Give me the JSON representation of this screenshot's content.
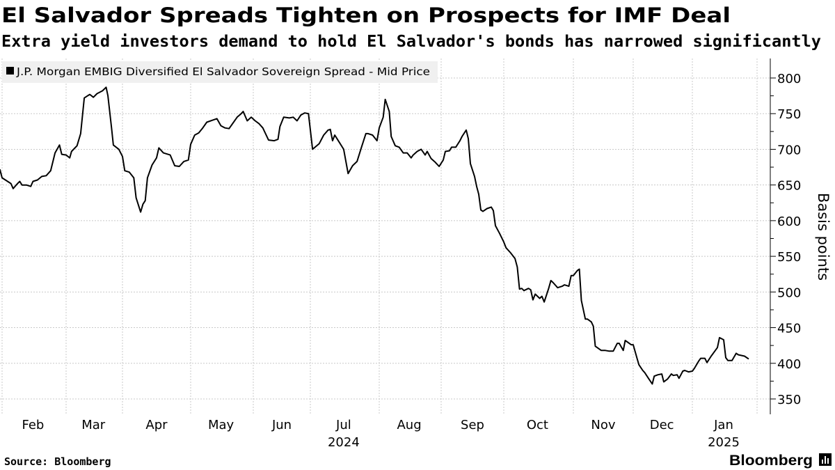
{
  "header": {
    "title": "El Salvador Spreads Tighten on Prospects for IMF Deal",
    "subtitle": "Extra yield investors demand to hold El Salvador's bonds has narrowed significantly"
  },
  "footer": {
    "source": "Source: Bloomberg",
    "logo": "Bloomberg"
  },
  "chart_data": {
    "type": "line",
    "title": "El Salvador Spreads Tighten on Prospects for IMF Deal",
    "ylabel": "Basis points",
    "xlabel": "",
    "ylim": [
      335,
      825
    ],
    "yticks": [
      "800",
      "750",
      "700",
      "650",
      "600",
      "550",
      "500",
      "450",
      "400",
      "350"
    ],
    "xticks": [
      {
        "label": "Feb",
        "date": "2024-02-15"
      },
      {
        "label": "Mar",
        "date": "2024-03-16"
      },
      {
        "label": "Apr",
        "date": "2024-04-16"
      },
      {
        "label": "May",
        "date": "2024-05-16"
      },
      {
        "label": "Jun",
        "date": "2024-06-16"
      },
      {
        "label": "Jul",
        "date": "2024-07-16"
      },
      {
        "label": "Aug",
        "date": "2024-08-16"
      },
      {
        "label": "Sep",
        "date": "2024-09-16"
      },
      {
        "label": "Oct",
        "date": "2024-10-16"
      },
      {
        "label": "Nov",
        "date": "2024-11-16"
      },
      {
        "label": "Dec",
        "date": "2024-12-16"
      },
      {
        "label": "Jan",
        "date": "2025-01-16"
      }
    ],
    "year_labels": [
      {
        "label": "2024",
        "date": "2024-07-16"
      },
      {
        "label": "2025",
        "date": "2025-01-16"
      }
    ],
    "grid": true,
    "legend_position": "top-left",
    "line_color": "#000000",
    "legend_bg": "#f0f0f0",
    "series": [
      {
        "name": "J.P. Morgan EMBIG Diversified El Salvador Sovereign Spread - Mid Price",
        "x": [
          "2024-01-31",
          "2024-02-01",
          "2024-02-05",
          "2024-02-06",
          "2024-02-08",
          "2024-02-09",
          "2024-02-10",
          "2024-02-12",
          "2024-02-14",
          "2024-02-15",
          "2024-02-17",
          "2024-02-19",
          "2024-02-21",
          "2024-02-23",
          "2024-02-25",
          "2024-02-27",
          "2024-02-28",
          "2024-03-01",
          "2024-03-03",
          "2024-03-04",
          "2024-03-07",
          "2024-03-09",
          "2024-03-11",
          "2024-03-14",
          "2024-03-16",
          "2024-03-18",
          "2024-03-21",
          "2024-03-23",
          "2024-03-24",
          "2024-03-26",
          "2024-03-27",
          "2024-03-30",
          "2024-04-01",
          "2024-04-02",
          "2024-04-04",
          "2024-04-06",
          "2024-04-07",
          "2024-04-09",
          "2024-04-10",
          "2024-04-11",
          "2024-04-12",
          "2024-04-14",
          "2024-04-16",
          "2024-04-17",
          "2024-04-19",
          "2024-04-22",
          "2024-04-24",
          "2024-04-26",
          "2024-04-28",
          "2024-04-30",
          "2024-05-01",
          "2024-05-03",
          "2024-05-05",
          "2024-05-07",
          "2024-05-09",
          "2024-05-12",
          "2024-05-14",
          "2024-05-16",
          "2024-05-18",
          "2024-05-20",
          "2024-05-22",
          "2024-05-24",
          "2024-05-26",
          "2024-05-27",
          "2024-05-29",
          "2024-05-31",
          "2024-06-02",
          "2024-06-04",
          "2024-06-06",
          "2024-06-09",
          "2024-06-12",
          "2024-06-14",
          "2024-06-15",
          "2024-06-17",
          "2024-06-20",
          "2024-06-22",
          "2024-06-24",
          "2024-06-26",
          "2024-06-28",
          "2024-06-30",
          "2024-07-02",
          "2024-07-05",
          "2024-07-07",
          "2024-07-09",
          "2024-07-10",
          "2024-07-11",
          "2024-07-12",
          "2024-07-14",
          "2024-07-16",
          "2024-07-18",
          "2024-07-20",
          "2024-07-22",
          "2024-07-24",
          "2024-07-26",
          "2024-07-27",
          "2024-07-29",
          "2024-07-31",
          "2024-08-01",
          "2024-08-03",
          "2024-08-04",
          "2024-08-06",
          "2024-08-07",
          "2024-08-09",
          "2024-08-11",
          "2024-08-13",
          "2024-08-15",
          "2024-08-17",
          "2024-08-18",
          "2024-08-20",
          "2024-08-22",
          "2024-08-24",
          "2024-08-25",
          "2024-08-27",
          "2024-08-29",
          "2024-08-31",
          "2024-09-02",
          "2024-09-03",
          "2024-09-05",
          "2024-09-06",
          "2024-09-08",
          "2024-09-10",
          "2024-09-11",
          "2024-09-13",
          "2024-09-14",
          "2024-09-15",
          "2024-09-17",
          "2024-09-18",
          "2024-09-19",
          "2024-09-20",
          "2024-09-21",
          "2024-09-23",
          "2024-09-25",
          "2024-09-26",
          "2024-09-27",
          "2024-09-29",
          "2024-10-01",
          "2024-10-02",
          "2024-10-04",
          "2024-10-06",
          "2024-10-07",
          "2024-10-08",
          "2024-10-09",
          "2024-10-10",
          "2024-10-12",
          "2024-10-13",
          "2024-10-14",
          "2024-10-15",
          "2024-10-17",
          "2024-10-18",
          "2024-10-19",
          "2024-10-21",
          "2024-10-22",
          "2024-10-23",
          "2024-10-25",
          "2024-10-27",
          "2024-10-28",
          "2024-10-30",
          "2024-10-31",
          "2024-11-01",
          "2024-11-03",
          "2024-11-04",
          "2024-11-05",
          "2024-11-07",
          "2024-11-08",
          "2024-11-10",
          "2024-11-11",
          "2024-11-12",
          "2024-11-14",
          "2024-11-15",
          "2024-11-17",
          "2024-11-19",
          "2024-11-21",
          "2024-11-23",
          "2024-11-24",
          "2024-11-26",
          "2024-11-27",
          "2024-11-28",
          "2024-11-30",
          "2024-12-01",
          "2024-12-03",
          "2024-12-04",
          "2024-12-06",
          "2024-12-07",
          "2024-12-09",
          "2024-12-11",
          "2024-12-12",
          "2024-12-14",
          "2024-12-16",
          "2024-12-17",
          "2024-12-19",
          "2024-12-21",
          "2024-12-22",
          "2024-12-24",
          "2024-12-25",
          "2024-12-27",
          "2024-12-28",
          "2024-12-30",
          "2025-01-01",
          "2025-01-02",
          "2025-01-04",
          "2025-01-05",
          "2025-01-07",
          "2025-01-08",
          "2025-01-10",
          "2025-01-12",
          "2025-01-13",
          "2025-01-14",
          "2025-01-16",
          "2025-01-17",
          "2025-01-18",
          "2025-01-20",
          "2025-01-22",
          "2025-01-23",
          "2025-01-26",
          "2025-01-28"
        ],
        "y": [
          672,
          660,
          652,
          645,
          652,
          655,
          650,
          650,
          648,
          655,
          657,
          662,
          663,
          670,
          695,
          706,
          693,
          692,
          688,
          697,
          705,
          722,
          772,
          777,
          773,
          778,
          782,
          787,
          775,
          730,
          706,
          700,
          690,
          670,
          668,
          660,
          632,
          612,
          623,
          628,
          660,
          678,
          688,
          702,
          695,
          692,
          677,
          676,
          683,
          685,
          707,
          720,
          723,
          730,
          738,
          741,
          743,
          733,
          730,
          729,
          737,
          745,
          750,
          753,
          740,
          745,
          740,
          736,
          730,
          713,
          712,
          714,
          732,
          745,
          744,
          745,
          740,
          748,
          751,
          750,
          700,
          708,
          720,
          727,
          728,
          712,
          720,
          710,
          700,
          666,
          677,
          683,
          703,
          722,
          722,
          720,
          712,
          730,
          745,
          770,
          753,
          718,
          705,
          703,
          695,
          695,
          688,
          692,
          697,
          700,
          692,
          697,
          687,
          682,
          676,
          685,
          697,
          698,
          703,
          703,
          712,
          718,
          727,
          715,
          680,
          662,
          648,
          637,
          615,
          613,
          617,
          619,
          614,
          593,
          582,
          570,
          562,
          555,
          547,
          535,
          504,
          505,
          502,
          505,
          503,
          489,
          497,
          491,
          494,
          486,
          505,
          516,
          513,
          506,
          508,
          510,
          508,
          523,
          523,
          530,
          532,
          488,
          462,
          462,
          458,
          452,
          424,
          420,
          418,
          418,
          417,
          417,
          428,
          428,
          418,
          432,
          430,
          426,
          426,
          407,
          398,
          390,
          387,
          379,
          371,
          382,
          384,
          385,
          374,
          378,
          385,
          383,
          384,
          379,
          389,
          390,
          388,
          389,
          393,
          403,
          407,
          407,
          401,
          410,
          418,
          422,
          436,
          433,
          408,
          404,
          404,
          414,
          412,
          410,
          406
        ]
      }
    ]
  }
}
